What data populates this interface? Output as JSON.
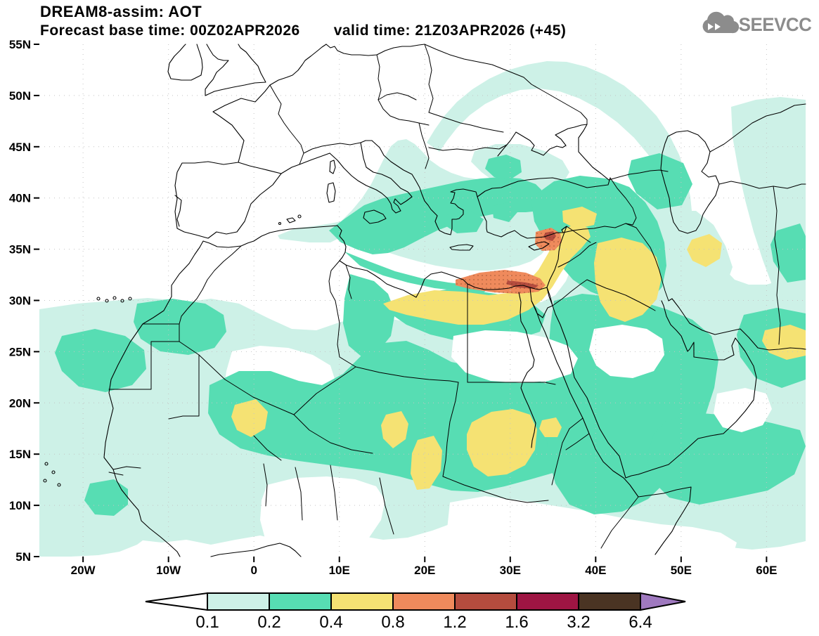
{
  "header": {
    "title": "DREAM8-assim: AOT",
    "forecast_label": "Forecast base time: 00Z02APR2026",
    "valid_label": "valid time: 21Z03APR2026 (+45)"
  },
  "logo": {
    "text": "SEEVCCC",
    "icon": "cloud-arrow-icon",
    "color": "#8c8c8c"
  },
  "map": {
    "variable": "AOT",
    "lat_ticks": [
      {
        "label": "55N",
        "deg": 55
      },
      {
        "label": "50N",
        "deg": 50
      },
      {
        "label": "45N",
        "deg": 45
      },
      {
        "label": "40N",
        "deg": 40
      },
      {
        "label": "35N",
        "deg": 35
      },
      {
        "label": "30N",
        "deg": 30
      },
      {
        "label": "25N",
        "deg": 25
      },
      {
        "label": "20N",
        "deg": 20
      },
      {
        "label": "15N",
        "deg": 15
      },
      {
        "label": "10N",
        "deg": 10
      },
      {
        "label": "5N",
        "deg": 5
      }
    ],
    "lon_ticks": [
      {
        "label": "20W",
        "deg": -20
      },
      {
        "label": "10W",
        "deg": -10
      },
      {
        "label": "0",
        "deg": 0
      },
      {
        "label": "10E",
        "deg": 10
      },
      {
        "label": "20E",
        "deg": 20
      },
      {
        "label": "30E",
        "deg": 30
      },
      {
        "label": "40E",
        "deg": 40
      },
      {
        "label": "50E",
        "deg": 50
      },
      {
        "label": "60E",
        "deg": 60
      }
    ]
  },
  "legend": {
    "values": [
      "0.1",
      "0.2",
      "0.4",
      "0.8",
      "1.2",
      "1.6",
      "3.2",
      "6.4"
    ],
    "levels": [
      0.1,
      0.2,
      0.4,
      0.8,
      1.2,
      1.6,
      3.2,
      6.4
    ],
    "box_colors": [
      "#cdf1e7",
      "#57ddb3",
      "#f5e273",
      "#ef8a5c",
      "#b54c3e",
      "#9e1543",
      "#4a3423"
    ],
    "under_arrow_color": "#ffffff",
    "over_arrow_color": "#9f79bf"
  },
  "colors": {
    "grid": "#c4c4c4",
    "coast": "#000000",
    "frame": "#000000"
  }
}
